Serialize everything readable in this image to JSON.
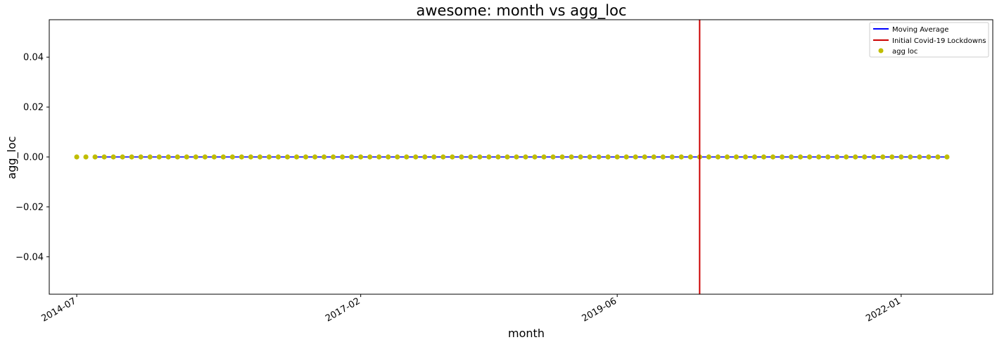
{
  "chart_data": {
    "type": "scatter",
    "title": "awesome: month vs agg_loc",
    "xlabel": "month",
    "ylabel": "agg_loc",
    "x_start": "2014-07",
    "x_end": "2022-06",
    "xlim": [
      "2014-04",
      "2022-11"
    ],
    "ylim": [
      -0.055,
      0.055
    ],
    "x_ticks": [
      "2014-07",
      "2017-02",
      "2019-06",
      "2022-01"
    ],
    "y_ticks": [
      0.04,
      0.02,
      0.0,
      -0.02,
      -0.04
    ],
    "y_tick_labels": [
      "0.04",
      "0.02",
      "0.00",
      "−0.02",
      "−0.04"
    ],
    "moving_average": {
      "name": "Moving Average",
      "color": "#0000ff",
      "x_start": "2014-09",
      "x_end": "2022-06",
      "value": 0.0
    },
    "vline": {
      "name": "Initial Covid-19 Lockdowns",
      "color": "#cc0000",
      "x": "2020-03"
    },
    "series": [
      {
        "name": "agg loc",
        "color": "#c0bd00",
        "value": 0.0
      }
    ],
    "legend": {
      "position": "top-right",
      "items": [
        "Moving Average",
        "Initial Covid-19 Lockdowns",
        "agg loc"
      ]
    },
    "grid": false
  }
}
